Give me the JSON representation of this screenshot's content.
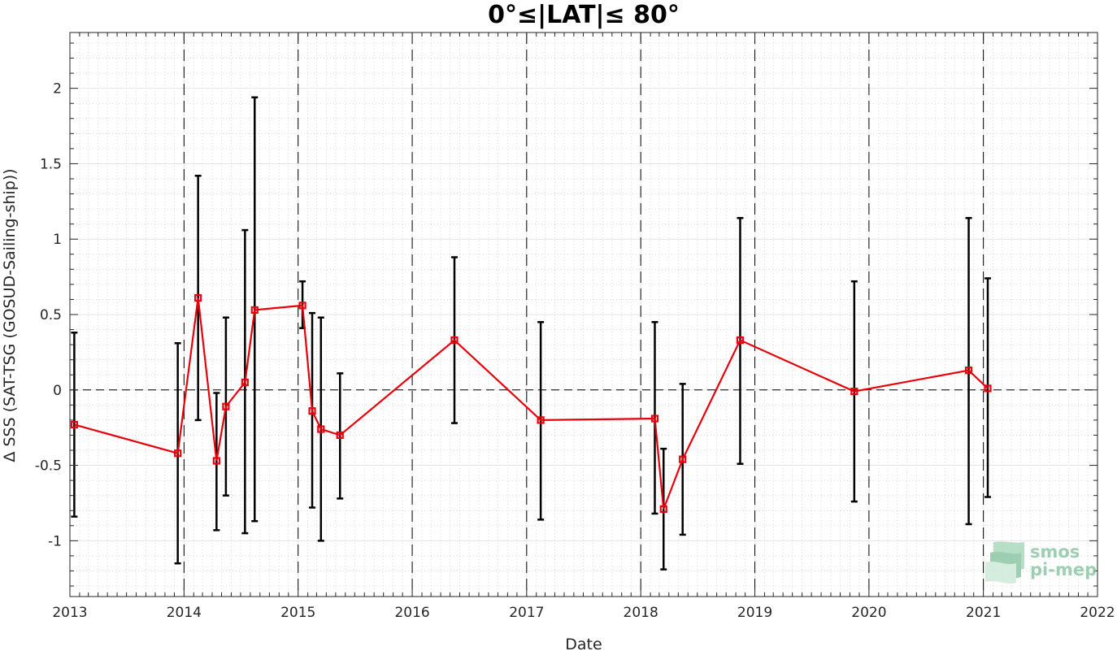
{
  "chart_data": {
    "type": "line",
    "title": "0°≤|LAT|≤ 80°",
    "xlabel": "Date",
    "ylabel": "Δ SSS (SAT-TSG (GOSUD-Sailing-ship))",
    "xlim": [
      "2013-01-01",
      "2022-01-01"
    ],
    "ylim": [
      -1.37,
      2.37
    ],
    "x_ticks": [
      "2013",
      "2014",
      "2015",
      "2016",
      "2017",
      "2018",
      "2019",
      "2020",
      "2021",
      "2022"
    ],
    "y_ticks": [
      -1,
      -0.5,
      0,
      0.5,
      1,
      1.5,
      2
    ],
    "y_tick_labels": [
      "-1",
      "-0.5",
      "0",
      "0.5",
      "1",
      "1.5",
      "2"
    ],
    "grid": true,
    "minor_grid": true,
    "zero_line": true,
    "year_boundary_lines": [
      "2014-01-01",
      "2015-01-01",
      "2016-01-01",
      "2017-01-01",
      "2018-01-01",
      "2019-01-01",
      "2020-01-01",
      "2021-01-01"
    ],
    "series": [
      {
        "color": "#e8000b",
        "marker": "square",
        "points": [
          {
            "date": "2013-01-15",
            "mean": -0.23,
            "low": -0.84,
            "high": 0.38
          },
          {
            "date": "2013-12-12",
            "mean": -0.42,
            "low": -1.15,
            "high": 0.31
          },
          {
            "date": "2014-02-15",
            "mean": 0.61,
            "low": -0.2,
            "high": 1.42
          },
          {
            "date": "2014-04-15",
            "mean": -0.47,
            "low": -0.93,
            "high": -0.02
          },
          {
            "date": "2014-05-15",
            "mean": -0.11,
            "low": -0.7,
            "high": 0.48
          },
          {
            "date": "2014-07-15",
            "mean": 0.05,
            "low": -0.95,
            "high": 1.06
          },
          {
            "date": "2014-08-15",
            "mean": 0.53,
            "low": -0.87,
            "high": 1.94
          },
          {
            "date": "2015-01-15",
            "mean": 0.56,
            "low": 0.41,
            "high": 0.72
          },
          {
            "date": "2015-02-15",
            "mean": -0.14,
            "low": -0.78,
            "high": 0.51
          },
          {
            "date": "2015-03-15",
            "mean": -0.26,
            "low": -1.0,
            "high": 0.48
          },
          {
            "date": "2015-05-15",
            "mean": -0.3,
            "low": -0.72,
            "high": 0.11
          },
          {
            "date": "2016-05-15",
            "mean": 0.33,
            "low": -0.22,
            "high": 0.88
          },
          {
            "date": "2017-02-15",
            "mean": -0.2,
            "low": -0.86,
            "high": 0.45
          },
          {
            "date": "2018-02-15",
            "mean": -0.19,
            "low": -0.82,
            "high": 0.45
          },
          {
            "date": "2018-03-15",
            "mean": -0.79,
            "low": -1.19,
            "high": -0.39
          },
          {
            "date": "2018-05-15",
            "mean": -0.46,
            "low": -0.96,
            "high": 0.04
          },
          {
            "date": "2018-11-15",
            "mean": 0.33,
            "low": -0.49,
            "high": 1.14
          },
          {
            "date": "2019-11-15",
            "mean": -0.01,
            "low": -0.74,
            "high": 0.72
          },
          {
            "date": "2020-11-15",
            "mean": 0.13,
            "low": -0.89,
            "high": 1.14
          },
          {
            "date": "2021-01-15",
            "mean": 0.01,
            "low": -0.71,
            "high": 0.74
          }
        ]
      }
    ],
    "errorbar_color": "#000000"
  },
  "logo": {
    "line1": "smos",
    "line2": "pi-mep",
    "color": "#7fbf99"
  }
}
